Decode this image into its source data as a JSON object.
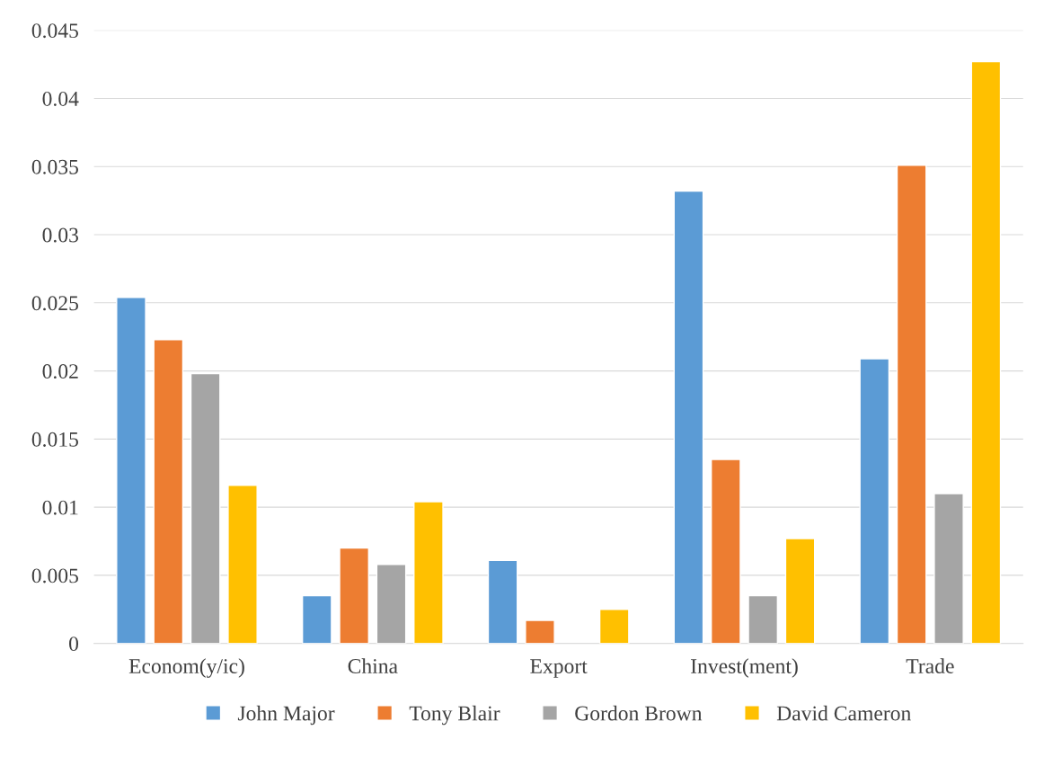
{
  "chart_data": {
    "type": "bar",
    "categories": [
      "Econom(y/ic)",
      "China",
      "Export",
      "Invest(ment)",
      "Trade"
    ],
    "series": [
      {
        "name": "John Major",
        "color": "#5b9bd5",
        "values": [
          0.0254,
          0.0035,
          0.0061,
          0.0332,
          0.0209
        ]
      },
      {
        "name": "Tony Blair",
        "color": "#ed7d31",
        "values": [
          0.0223,
          0.007,
          0.0017,
          0.0135,
          0.0351
        ]
      },
      {
        "name": "Gordon Brown",
        "color": "#a5a5a5",
        "values": [
          0.0198,
          0.0058,
          null,
          0.0035,
          0.011
        ]
      },
      {
        "name": "David Cameron",
        "color": "#ffc000",
        "values": [
          0.0116,
          0.0104,
          0.0025,
          0.0077,
          0.0427
        ]
      }
    ],
    "ylim": [
      0,
      0.045
    ],
    "yticks": [
      0,
      0.005,
      0.01,
      0.015,
      0.02,
      0.025,
      0.03,
      0.035,
      0.04,
      0.045
    ],
    "grid": "y",
    "legend": "bottom"
  }
}
